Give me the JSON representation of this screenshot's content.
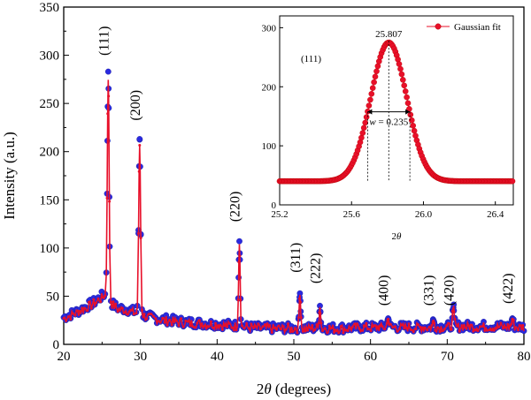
{
  "chart_data": [
    {
      "type": "scatter",
      "xlabel_prefix": "2",
      "xlabel_symbol": "θ",
      "xlabel_suffix": " (degrees)",
      "ylabel": "Intensity (a.u.)",
      "xlim": [
        20,
        80
      ],
      "ylim": [
        0,
        350
      ],
      "xticks": [
        20,
        30,
        40,
        50,
        60,
        70,
        80
      ],
      "yticks": [
        0,
        50,
        100,
        150,
        200,
        250,
        300,
        350
      ],
      "colors": {
        "marker": "#2a2ae0",
        "line": "#e8102a",
        "fit_marker": "#e8102a"
      },
      "peaks": [
        {
          "label": "(111)",
          "x": 25.8,
          "height": 283,
          "width": 0.12
        },
        {
          "label": "(200)",
          "x": 29.9,
          "height": 213,
          "width": 0.12
        },
        {
          "label": "(220)",
          "x": 42.9,
          "height": 107,
          "width": 0.1
        },
        {
          "label": "(311)",
          "x": 50.8,
          "height": 53,
          "width": 0.1
        },
        {
          "label": "(222)",
          "x": 53.4,
          "height": 40,
          "width": 0.09
        },
        {
          "label": "(400)",
          "x": 62.3,
          "height": 27,
          "width": 0.12
        },
        {
          "label": "(331)",
          "x": 68.2,
          "height": 25,
          "width": 0.12
        },
        {
          "label": "(420)",
          "x": 70.8,
          "height": 38,
          "width": 0.12
        },
        {
          "label": "(422)",
          "x": 78.5,
          "height": 27,
          "width": 0.12
        }
      ],
      "peak_label_y": [
        315,
        248,
        143,
        90,
        79,
        56,
        56,
        56,
        58
      ],
      "background": [
        [
          20,
          28
        ],
        [
          22,
          35
        ],
        [
          24,
          44
        ],
        [
          25.3,
          52
        ],
        [
          26,
          44
        ],
        [
          27,
          38
        ],
        [
          28.5,
          36
        ],
        [
          30.5,
          30
        ],
        [
          32,
          27
        ],
        [
          34,
          25
        ],
        [
          36,
          23
        ],
        [
          38,
          22
        ],
        [
          40,
          21
        ],
        [
          42,
          20
        ],
        [
          44,
          18
        ],
        [
          46,
          17
        ],
        [
          48,
          17
        ],
        [
          50,
          17
        ],
        [
          52,
          17
        ],
        [
          54,
          17
        ],
        [
          56,
          17
        ],
        [
          60,
          18
        ],
        [
          64,
          18
        ],
        [
          68,
          18
        ],
        [
          72,
          19
        ],
        [
          76,
          19
        ],
        [
          80,
          18
        ]
      ]
    },
    {
      "type": "scatter",
      "xlabel_prefix": "2",
      "xlabel_symbol": "θ",
      "xlim": [
        25.2,
        26.5
      ],
      "ylim": [
        0,
        320
      ],
      "xticks": [
        25.2,
        25.6,
        26.0,
        26.4
      ],
      "xtick_labels": [
        "25.2",
        "25.6",
        "26.0",
        "26.4"
      ],
      "yticks": [
        0,
        100,
        200,
        300
      ],
      "legend": "Gaussian fit",
      "legend_position": "top-right",
      "peak_label": "(111)",
      "center": 25.807,
      "center_label": "25.807",
      "fwhm": 0.235,
      "width_label_symbol": "w",
      "width_label_value": " = 0.235",
      "baseline": 40,
      "amplitude": 235
    }
  ]
}
